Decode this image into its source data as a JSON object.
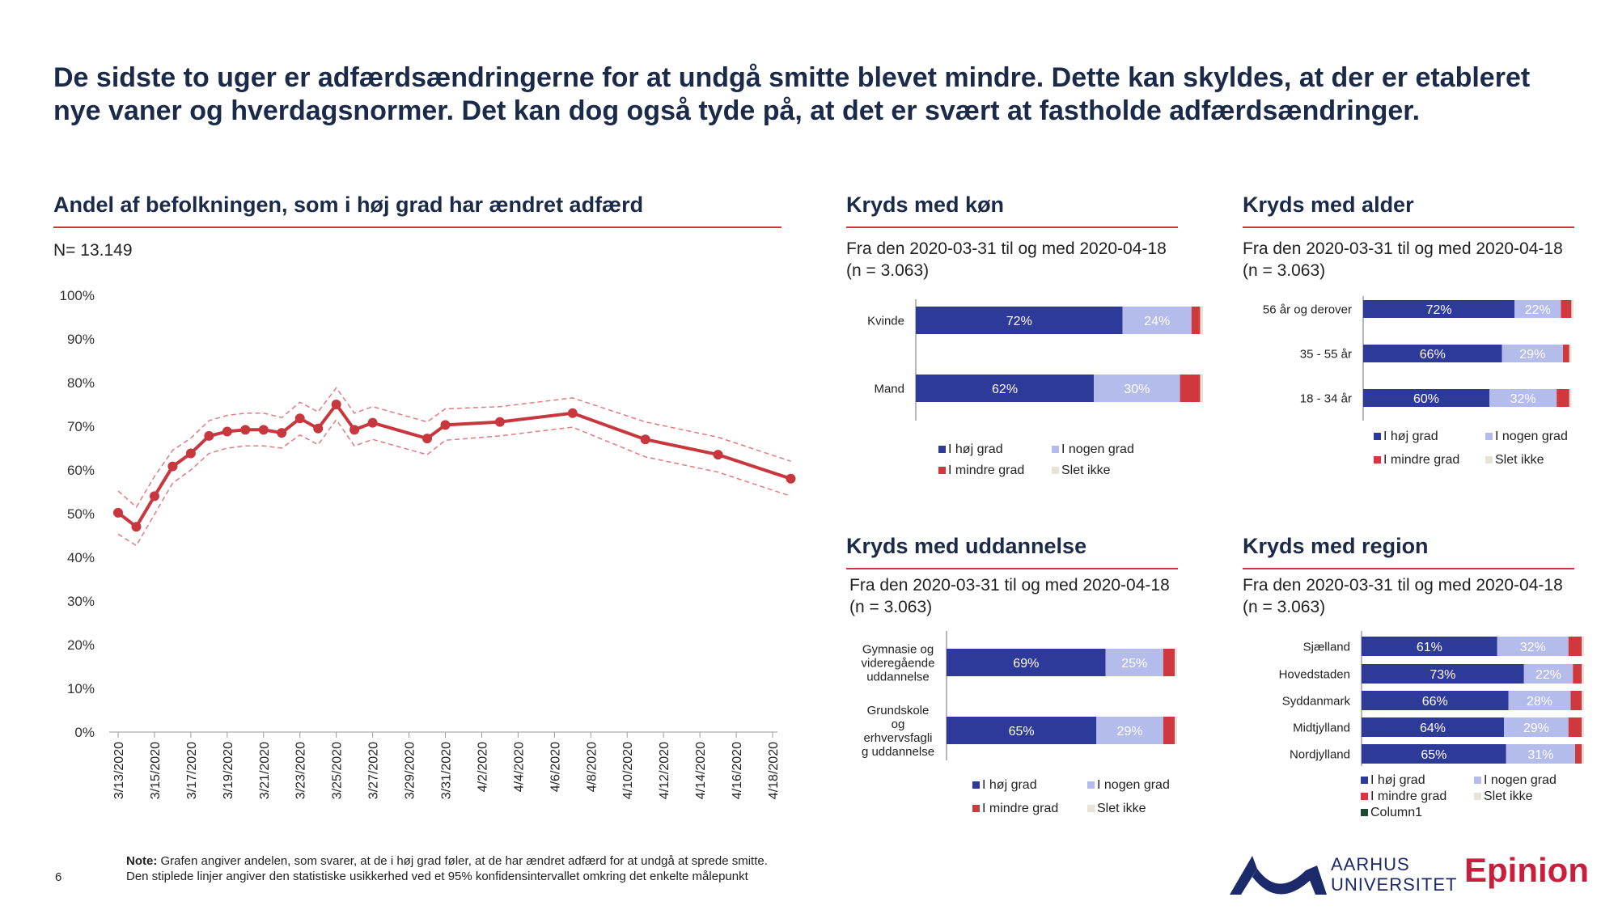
{
  "headline": "De sidste to uger er adfærdsændringerne for at undgå smitte blevet mindre. Dette kan skyldes, at der er etableret nye vaner og hverdagsnormer. Det kan dog også tyde på, at det er svært at fastholde adfærdsændringer.",
  "main_title": "Andel af befolkningen, som i høj grad har ændret adfærd",
  "main_n": "N= 13.149",
  "note_label": "Note:",
  "note_line1": " Grafen angiver andelen, som svarer, at de i høj grad føler, at de har ændret adfærd for at undgå at sprede smitte.",
  "note_line2": "Den stiplede linjer angiver den statistiske usikkerhed ved et 95% konfidensintervallet omkring det enkelte målepunkt",
  "page_number": "6",
  "logo_au_line1": "AARHUS",
  "logo_au_line2": "UNIVERSITET",
  "logo_epinion": "Epinion",
  "colors": {
    "accent_red": "#d0383d",
    "high": "#2e3a99",
    "some": "#b4bcec",
    "less": "#d0383d",
    "none": "#e8e3d6",
    "column1": "#1d4a33",
    "line": "#c8373d"
  },
  "panels": {
    "kon": {
      "title": "Kryds med køn",
      "subtitle": "Fra den 2020-03-31 til og med 2020-04-18",
      "n": "(n = 3.063)"
    },
    "alder": {
      "title": "Kryds med alder",
      "subtitle": "Fra den 2020-03-31 til og med 2020-04-18",
      "n": "(n = 3.063)"
    },
    "uddannelse": {
      "title": "Kryds med uddannelse",
      "subtitle": "Fra den 2020-03-31 til og med 2020-04-18",
      "n": "(n = 3.063)"
    },
    "region": {
      "title": "Kryds med region",
      "subtitle": "Fra den 2020-03-31 til og med 2020-04-18",
      "n": "(n = 3.063)"
    }
  },
  "chart_data": [
    {
      "id": "main",
      "type": "line",
      "title": "Andel af befolkningen, som i høj grad har ændret adfærd",
      "ylim": [
        0,
        100
      ],
      "yticks": [
        "0%",
        "10%",
        "20%",
        "30%",
        "40%",
        "50%",
        "60%",
        "70%",
        "80%",
        "90%",
        "100%"
      ],
      "xticks": [
        "3/13/2020",
        "3/15/2020",
        "3/17/2020",
        "3/19/2020",
        "3/21/2020",
        "3/23/2020",
        "3/25/2020",
        "3/27/2020",
        "3/29/2020",
        "3/31/2020",
        "4/2/2020",
        "4/4/2020",
        "4/6/2020",
        "4/8/2020",
        "4/10/2020",
        "4/12/2020",
        "4/14/2020",
        "4/16/2020",
        "4/18/2020"
      ],
      "x": [
        "3/13/2020",
        "3/14/2020",
        "3/15/2020",
        "3/16/2020",
        "3/17/2020",
        "3/18/2020",
        "3/19/2020",
        "3/20/2020",
        "3/21/2020",
        "3/22/2020",
        "3/23/2020",
        "3/24/2020",
        "3/25/2020",
        "3/26/2020",
        "3/27/2020",
        "3/30/2020",
        "3/31/2020",
        "4/3/2020",
        "4/7/2020",
        "4/11/2020",
        "4/15/2020",
        "4/19/2020"
      ],
      "series": [
        {
          "values": [
            50.2,
            47.0,
            54.0,
            60.8,
            63.8,
            67.8,
            68.8,
            69.2,
            69.2,
            68.5,
            71.8,
            69.5,
            75.0,
            69.2,
            70.8,
            67.2,
            70.3,
            71.0,
            73.0,
            67.0,
            63.5,
            58.0
          ]
        },
        {
          "values": [
            55.2,
            51.5,
            58.5,
            64.5,
            67.3,
            71.3,
            72.5,
            73.0,
            73.0,
            72.0,
            75.5,
            73.3,
            78.8,
            73.0,
            74.5,
            71.0,
            74.0,
            74.5,
            76.5,
            71.0,
            67.5,
            62.0
          ]
        },
        {
          "values": [
            45.3,
            42.7,
            49.8,
            57.0,
            60.0,
            63.8,
            65.0,
            65.5,
            65.5,
            65.0,
            68.0,
            65.8,
            71.5,
            65.5,
            67.0,
            63.5,
            66.8,
            67.8,
            69.8,
            63.0,
            59.5,
            54.0
          ]
        }
      ],
      "grid": false
    },
    {
      "id": "kon",
      "type": "bar",
      "stacked": true,
      "orientation": "horizontal",
      "categories": [
        "Kvinde",
        "Mand"
      ],
      "series": [
        {
          "name": "I høj grad",
          "values": [
            72,
            62
          ]
        },
        {
          "name": "I nogen grad",
          "values": [
            24,
            30
          ]
        },
        {
          "name": "I mindre grad",
          "values": [
            3,
            7
          ]
        },
        {
          "name": "Slet ikke",
          "values": [
            1,
            1
          ]
        }
      ],
      "legend": [
        "I høj grad",
        "I nogen grad",
        "I mindre grad",
        "Slet ikke"
      ]
    },
    {
      "id": "alder",
      "type": "bar",
      "stacked": true,
      "orientation": "horizontal",
      "categories": [
        "56 år og derover",
        "35 - 55 år",
        "18 - 34 år"
      ],
      "series": [
        {
          "name": "I høj grad",
          "values": [
            72,
            66,
            60
          ]
        },
        {
          "name": "I nogen grad",
          "values": [
            22,
            29,
            32
          ]
        },
        {
          "name": "I mindre grad",
          "values": [
            5,
            3,
            6
          ]
        },
        {
          "name": "Slet ikke",
          "values": [
            1,
            1,
            1
          ]
        }
      ],
      "legend": [
        "I høj grad",
        "I nogen grad",
        "I mindre grad",
        "Slet ikke"
      ]
    },
    {
      "id": "uddannelse",
      "type": "bar",
      "stacked": true,
      "orientation": "horizontal",
      "categories": [
        "Gymnasie og videregående uddannelse",
        "Grundskole og erhvervsfaglig uddannelse"
      ],
      "category_lines": [
        [
          "Gymnasie og",
          "videregående",
          "uddannelse"
        ],
        [
          "Grundskole",
          "og",
          "erhvervsfagli",
          "g uddannelse"
        ]
      ],
      "series": [
        {
          "name": "I høj grad",
          "values": [
            69,
            65
          ]
        },
        {
          "name": "I nogen grad",
          "values": [
            25,
            29
          ]
        },
        {
          "name": "I mindre grad",
          "values": [
            5,
            5
          ]
        },
        {
          "name": "Slet ikke",
          "values": [
            1,
            1
          ]
        }
      ],
      "legend": [
        "I høj grad",
        "I nogen grad",
        "I mindre grad",
        "Slet ikke"
      ]
    },
    {
      "id": "region",
      "type": "bar",
      "stacked": true,
      "orientation": "horizontal",
      "categories": [
        "Sjælland",
        "Hovedstaden",
        "Syddanmark",
        "Midtjylland",
        "Nordjylland"
      ],
      "series": [
        {
          "name": "I høj grad",
          "values": [
            61,
            73,
            66,
            64,
            65
          ]
        },
        {
          "name": "I nogen grad",
          "values": [
            32,
            22,
            28,
            29,
            31
          ]
        },
        {
          "name": "I mindre grad",
          "values": [
            6,
            4,
            5,
            6,
            3
          ]
        },
        {
          "name": "Slet ikke",
          "values": [
            1,
            1,
            1,
            1,
            1
          ]
        },
        {
          "name": "Column1",
          "values": [
            0,
            0,
            0,
            0,
            0
          ]
        }
      ],
      "legend": [
        "I høj grad",
        "I nogen grad",
        "I mindre grad",
        "Slet ikke",
        "Column1"
      ]
    }
  ]
}
